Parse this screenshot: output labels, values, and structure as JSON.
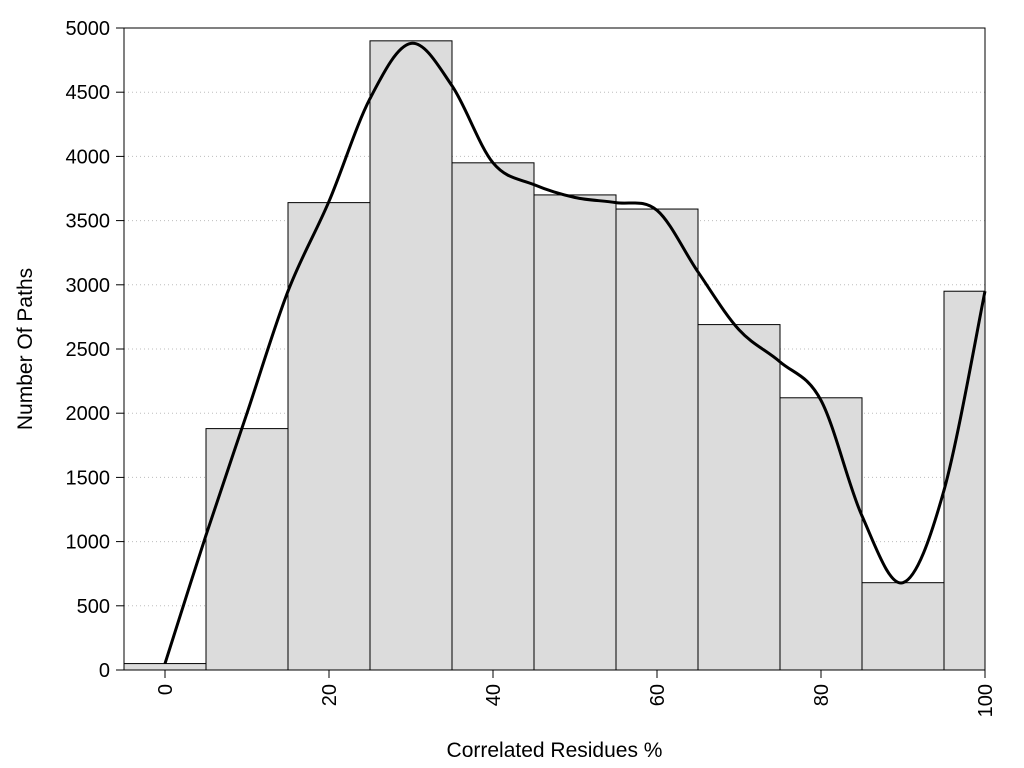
{
  "chart_data": {
    "type": "bar",
    "subtype": "histogram",
    "title": "",
    "xlabel": "Correlated Residues %",
    "ylabel": "Number Of Paths",
    "xlim": [
      -5,
      100
    ],
    "ylim": [
      0,
      5000
    ],
    "x_tick_values": [
      0,
      20,
      40,
      60,
      80,
      100
    ],
    "x_tick_labels": [
      "0",
      "20",
      "40",
      "60",
      "80",
      "100"
    ],
    "y_tick_values": [
      0,
      500,
      1000,
      1500,
      2000,
      2500,
      3000,
      3500,
      4000,
      4500,
      5000
    ],
    "y_tick_labels": [
      "0",
      "500",
      "1000",
      "1500",
      "2000",
      "2500",
      "3000",
      "3500",
      "4000",
      "4500",
      "5000"
    ],
    "grid": "horizontal dotted",
    "legend": "none",
    "bin_width": 10,
    "bin_centers": [
      0,
      10,
      20,
      30,
      40,
      50,
      60,
      70,
      80,
      90,
      100
    ],
    "values": [
      50,
      1880,
      3640,
      4900,
      3950,
      3700,
      3590,
      2690,
      2120,
      680,
      2950
    ],
    "curve_type": "smoothed line",
    "curve": {
      "x": [
        0,
        5,
        10,
        15,
        20,
        25,
        30,
        35,
        40,
        45,
        50,
        55,
        60,
        65,
        70,
        75,
        80,
        85,
        90,
        95,
        100
      ],
      "y": [
        50,
        1050,
        2000,
        2950,
        3650,
        4450,
        4880,
        4550,
        3950,
        3780,
        3680,
        3640,
        3580,
        3100,
        2650,
        2400,
        2100,
        1200,
        680,
        1400,
        2950
      ]
    },
    "colors": {
      "bar_fill": "#dcdcdc",
      "bar_stroke": "#000000",
      "curve": "#000000",
      "grid": "#bdbdbd",
      "axis": "#000000"
    }
  }
}
